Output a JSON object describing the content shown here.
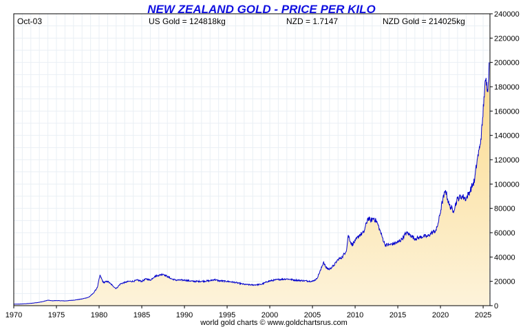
{
  "chart_data": {
    "type": "area",
    "title": "NEW ZEALAND GOLD - PRICE PER KILO",
    "info": {
      "date": "Oct-03",
      "us_gold": "US Gold = 124818kg",
      "nzd_rate": "NZD = 1.7147",
      "nzd_gold": "NZD Gold = 214025kg"
    },
    "footer": "world gold charts © www.goldchartsrus.com",
    "xlabel": "",
    "ylabel": "",
    "xlim": [
      1970,
      2025.8
    ],
    "ylim": [
      0,
      240000
    ],
    "x_ticks": [
      1970,
      1975,
      1980,
      1985,
      1990,
      1995,
      2000,
      2005,
      2010,
      2015,
      2020,
      2025
    ],
    "y_ticks": [
      0,
      20000,
      40000,
      60000,
      80000,
      100000,
      120000,
      140000,
      160000,
      180000,
      200000,
      220000,
      240000
    ],
    "y_axis_side": "right",
    "grid": true,
    "line_color": "#0000cc",
    "fill_top_color": "#fbd98a",
    "fill_bottom_color": "#fdf3da",
    "title_color": "#1010e0",
    "series": [
      {
        "x": [
          1970.0,
          1971.0,
          1972.0,
          1973.0,
          1973.5,
          1974.0,
          1974.5,
          1975.0,
          1976.0,
          1977.0,
          1978.0,
          1978.8,
          1979.3,
          1979.8,
          1980.1,
          1980.5,
          1981.0,
          1981.5,
          1982.0,
          1982.5,
          1983.0,
          1983.5,
          1984.0,
          1984.5,
          1985.0,
          1985.5,
          1986.0,
          1986.5,
          1987.0,
          1987.5,
          1988.0,
          1988.5,
          1989.0,
          1990.0,
          1991.0,
          1992.0,
          1993.0,
          1993.5,
          1994.0,
          1995.0,
          1996.0,
          1997.0,
          1998.0,
          1999.0,
          1999.8,
          2000.5,
          2001.0,
          2002.0,
          2003.0,
          2004.0,
          2005.0,
          2005.5,
          2006.0,
          2006.3,
          2006.6,
          2007.0,
          2007.5,
          2008.0,
          2008.5,
          2009.0,
          2009.2,
          2009.6,
          2010.0,
          2010.5,
          2011.0,
          2011.5,
          2011.8,
          2012.2,
          2012.6,
          2012.9,
          2013.2,
          2013.5,
          2014.0,
          2014.5,
          2015.0,
          2015.5,
          2016.0,
          2016.5,
          2017.0,
          2017.5,
          2018.0,
          2018.5,
          2019.0,
          2019.5,
          2019.8,
          2020.2,
          2020.6,
          2021.0,
          2021.5,
          2022.0,
          2022.5,
          2023.0,
          2023.5,
          2023.8,
          2024.0,
          2024.3,
          2024.6,
          2024.9,
          2025.1,
          2025.3,
          2025.5,
          2025.6,
          2025.7
        ],
        "values": [
          1200,
          1400,
          1900,
          2800,
          3500,
          4500,
          4000,
          4200,
          3900,
          4500,
          5500,
          7000,
          10000,
          15000,
          25000,
          19000,
          20000,
          17000,
          14000,
          18000,
          19000,
          20000,
          20000,
          21000,
          20000,
          22000,
          21000,
          24000,
          25000,
          26000,
          24000,
          22000,
          21000,
          21000,
          20000,
          20000,
          20500,
          21500,
          20500,
          20000,
          19000,
          17500,
          17000,
          17500,
          20000,
          21000,
          21500,
          22000,
          21000,
          20500,
          20000,
          22000,
          30000,
          36000,
          31000,
          30000,
          33000,
          38000,
          40000,
          46000,
          58000,
          50000,
          53000,
          58000,
          60000,
          72000,
          70000,
          72000,
          68000,
          62000,
          56000,
          50000,
          50000,
          51000,
          52000,
          55000,
          60000,
          58000,
          55000,
          56000,
          57000,
          57000,
          60000,
          62000,
          70000,
          85000,
          95000,
          83000,
          78000,
          88000,
          90000,
          88000,
          95000,
          100000,
          103000,
          120000,
          130000,
          148000,
          172000,
          185000,
          178000,
          183000,
          200000
        ]
      }
    ]
  }
}
